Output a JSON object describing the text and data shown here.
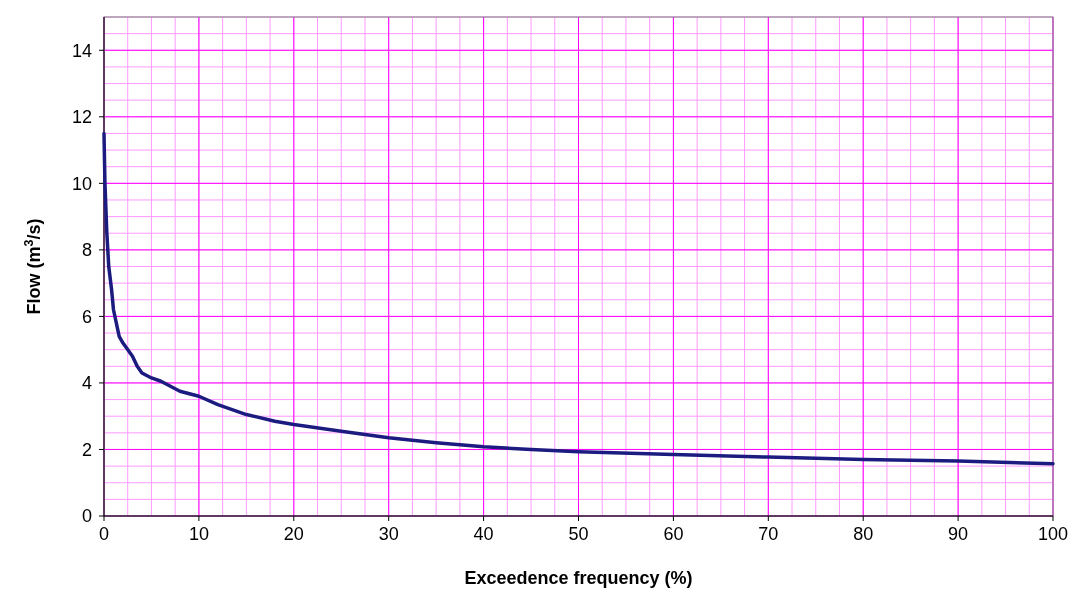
{
  "chart_data": {
    "type": "line",
    "xlabel": "Exceedence frequency (%)",
    "ylabel": "Flow (m$^{3}$/s)",
    "xlim": [
      0,
      100
    ],
    "xticks": [
      0,
      10,
      20,
      30,
      40,
      50,
      60,
      70,
      80,
      90,
      100
    ],
    "ylim": [
      0,
      15
    ],
    "yticks": [
      0,
      2,
      4,
      6,
      8,
      10,
      12,
      14
    ],
    "grid": true,
    "marker": "none",
    "line_style": "solid",
    "series": [
      {
        "color": "#1c1c80",
        "x": [
          0,
          0.1,
          0.3,
          0.5,
          0.8,
          1,
          1.3,
          1.6,
          2,
          3,
          3.5,
          4,
          5,
          6,
          7,
          8,
          10,
          12,
          15,
          18,
          20,
          25,
          30,
          35,
          40,
          45,
          50,
          60,
          70,
          80,
          90,
          100
        ],
        "values": [
          11.5,
          10,
          8.5,
          7.5,
          6.8,
          6.2,
          5.8,
          5.4,
          5.2,
          4.8,
          4.5,
          4.3,
          4.15,
          4.05,
          3.9,
          3.75,
          3.6,
          3.35,
          3.05,
          2.85,
          2.75,
          2.55,
          2.35,
          2.2,
          2.08,
          2.0,
          1.93,
          1.85,
          1.77,
          1.7,
          1.65,
          1.57
        ]
      }
    ]
  }
}
